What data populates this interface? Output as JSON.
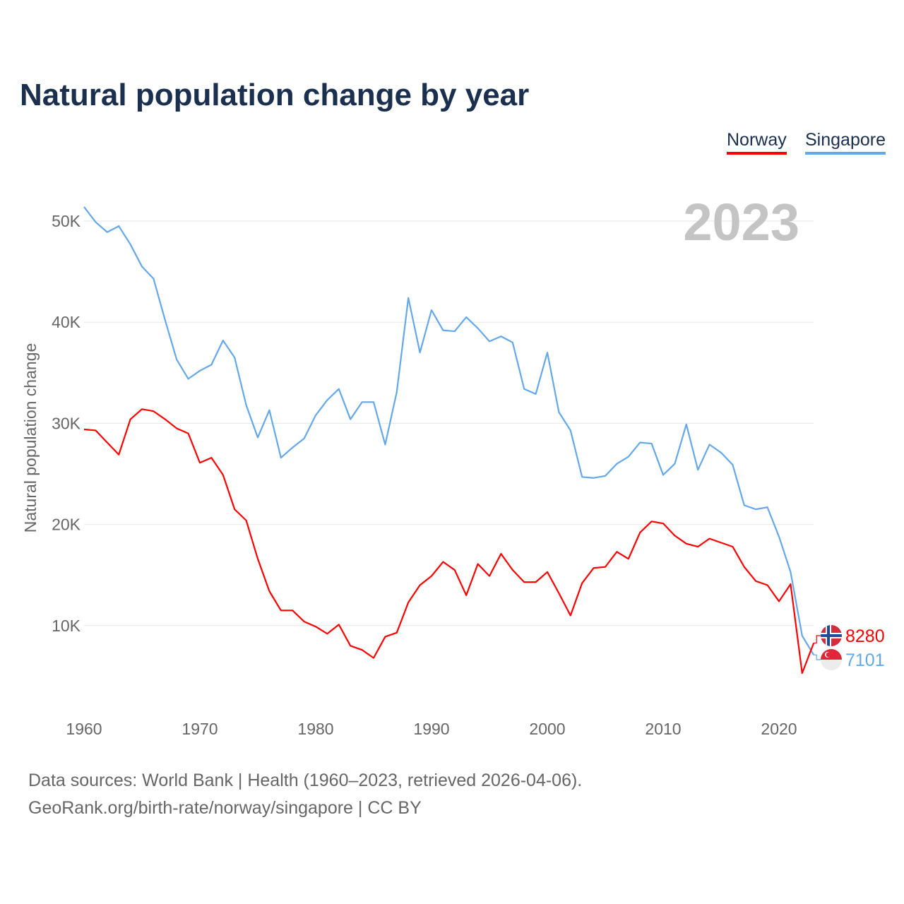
{
  "chart_data": {
    "type": "line",
    "title": "Natural population change by year",
    "xlabel": "",
    "ylabel": "Natural population change",
    "year_watermark": "2023",
    "xlim": [
      1960,
      2023
    ],
    "ylim": [
      0,
      50000
    ],
    "x_ticks": [
      1960,
      1970,
      1980,
      1990,
      2000,
      2010,
      2020
    ],
    "x_tick_labels": [
      "1960",
      "1970",
      "1980",
      "1990",
      "2000",
      "2010",
      "2020"
    ],
    "y_ticks": [
      10000,
      20000,
      30000,
      40000,
      50000
    ],
    "y_tick_labels": [
      "10K",
      "20K",
      "30K",
      "40K",
      "50K"
    ],
    "grid": true,
    "legend_position": "top-right",
    "x": [
      1960,
      1961,
      1962,
      1963,
      1964,
      1965,
      1966,
      1967,
      1968,
      1969,
      1970,
      1971,
      1972,
      1973,
      1974,
      1975,
      1976,
      1977,
      1978,
      1979,
      1980,
      1981,
      1982,
      1983,
      1984,
      1985,
      1986,
      1987,
      1988,
      1989,
      1990,
      1991,
      1992,
      1993,
      1994,
      1995,
      1996,
      1997,
      1998,
      1999,
      2000,
      2001,
      2002,
      2003,
      2004,
      2005,
      2006,
      2007,
      2008,
      2009,
      2010,
      2011,
      2012,
      2013,
      2014,
      2015,
      2016,
      2017,
      2018,
      2019,
      2020,
      2021,
      2022,
      2023
    ],
    "series": [
      {
        "name": "Norway",
        "color": "#ff0000",
        "end_label": "8280",
        "flag": "norway-flag",
        "values": [
          29400,
          29300,
          28100,
          26900,
          30400,
          31400,
          31200,
          30400,
          29500,
          29000,
          26100,
          26600,
          24900,
          21500,
          20400,
          16600,
          13400,
          11500,
          11500,
          10400,
          9900,
          9200,
          10100,
          8000,
          7600,
          6800,
          8900,
          9300,
          12300,
          14000,
          14900,
          16300,
          15500,
          13000,
          16100,
          14900,
          17100,
          15500,
          14300,
          14300,
          15300,
          13200,
          11000,
          14200,
          15700,
          15800,
          17300,
          16600,
          19200,
          20300,
          20100,
          18900,
          18100,
          17800,
          18600,
          18200,
          17800,
          15800,
          14400,
          14000,
          12400,
          14100,
          5300,
          8280
        ]
      },
      {
        "name": "Singapore",
        "color": "#64a8ea",
        "end_label": "7101",
        "flag": "singapore-flag",
        "values": [
          51400,
          49900,
          48900,
          49500,
          47700,
          45500,
          44300,
          40200,
          36300,
          34400,
          35200,
          35800,
          38200,
          36500,
          31800,
          28600,
          31300,
          26600,
          27600,
          28500,
          30800,
          32300,
          33400,
          30400,
          32100,
          32100,
          27900,
          33100,
          42400,
          37000,
          41200,
          39200,
          39100,
          40500,
          39400,
          38100,
          38600,
          38000,
          33400,
          32900,
          37000,
          31100,
          29300,
          24700,
          24600,
          24800,
          26000,
          26700,
          28100,
          28000,
          24900,
          26000,
          29900,
          25400,
          27900,
          27100,
          25900,
          21900,
          21500,
          21700,
          18800,
          15300,
          9000,
          7101
        ]
      }
    ]
  },
  "footer": {
    "line1": "Data sources: World Bank | Health (1960–2023, retrieved 2026-04-06).",
    "line2": "GeoRank.org/birth-rate/norway/singapore | CC BY"
  }
}
